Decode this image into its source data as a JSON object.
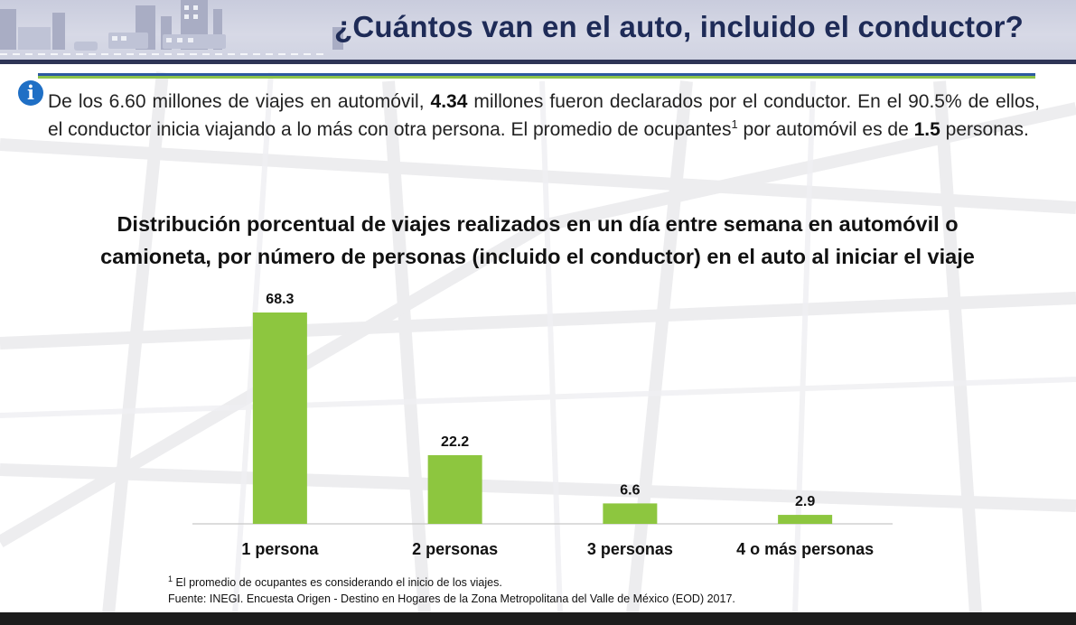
{
  "header": {
    "title": "¿Cuántos van en el auto, incluido el conductor?"
  },
  "info": {
    "icon": "info-icon",
    "part1": "De los 6.60 millones de viajes en automóvil, ",
    "bold1": "4.34",
    "part2": " millones fueron declarados por el conductor. En el 90.5% de ellos, el conductor inicia viajando a lo más con otra persona. El promedio de ocupantes",
    "sup": "1",
    "part3": " por automóvil es de ",
    "bold2": "1.5",
    "part4": " personas."
  },
  "colors": {
    "bar": "#8dc63f",
    "title_bar": "#2e3556",
    "rule_blue": "#2c5aa0",
    "rule_green": "#8bc34a",
    "info_icon": "#1f6fc5"
  },
  "chart_data": {
    "type": "bar",
    "title_line1": "Distribución porcentual de viajes realizados en un día entre semana en automóvil o",
    "title_line2": "camioneta, por número de personas (incluido el conductor) en el auto al iniciar el viaje",
    "categories": [
      "1 persona",
      "2 personas",
      "3 personas",
      "4 o más personas"
    ],
    "values": [
      68.3,
      22.2,
      6.6,
      2.9
    ],
    "data_labels": [
      "68.3",
      "22.2",
      "6.6",
      "2.9"
    ],
    "xlabel": "",
    "ylabel": "",
    "ylim": [
      0,
      68.3
    ],
    "grid": false,
    "legend": "none"
  },
  "footnotes": {
    "note1_sup": "1",
    "note1": " El promedio de ocupantes es considerando el inicio de los viajes.",
    "note2": "Fuente: INEGI. Encuesta Origen - Destino en Hogares de la Zona Metropolitana del Valle de México (EOD) 2017."
  }
}
